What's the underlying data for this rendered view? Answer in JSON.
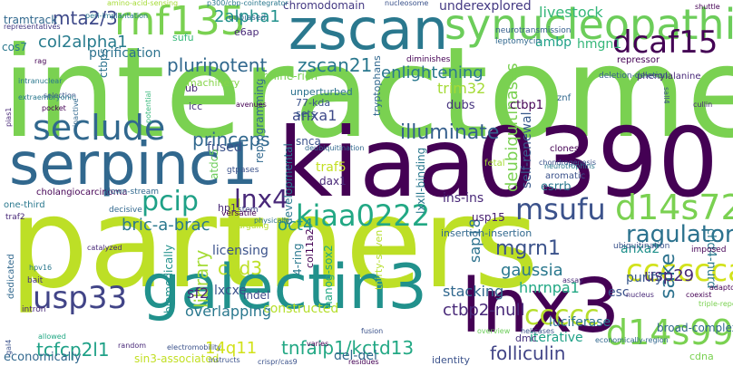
{
  "words": [
    {
      "text": "interactome",
      "color": "#7ad151"
    },
    {
      "text": "partners",
      "color": "#bddf26"
    },
    {
      "text": "kiaa0390",
      "color": "#440154"
    },
    {
      "text": "zscan",
      "color": "#2a788e"
    },
    {
      "text": "synucleopathies",
      "color": "#6ccd5a"
    },
    {
      "text": "galectin3",
      "color": "#21918c"
    },
    {
      "text": "serpinc1",
      "color": "#31688e"
    },
    {
      "text": "lnx3",
      "color": "#440154"
    },
    {
      "text": "rnf135",
      "color": "#7ad151"
    },
    {
      "text": "dcaf15",
      "color": "#440154"
    },
    {
      "text": "d14s72",
      "color": "#7ad151"
    },
    {
      "text": "d14s990",
      "color": "#7ad151"
    },
    {
      "text": "kiaa0222",
      "color": "#22a884"
    },
    {
      "text": "seclude",
      "color": "#31688e"
    },
    {
      "text": "msufu",
      "color": "#3b528b"
    },
    {
      "text": "pcip",
      "color": "#1fa187"
    },
    {
      "text": "lnx4",
      "color": "#482878"
    },
    {
      "text": "usp33",
      "color": "#414487"
    },
    {
      "text": "cccccca",
      "color": "#d2e21b"
    },
    {
      "text": "ccccc",
      "color": "#b5de2b"
    },
    {
      "text": "ragulator",
      "color": "#2c728e"
    },
    {
      "text": "illuminate",
      "color": "#355f8d"
    },
    {
      "text": "princeps",
      "color": "#31688e"
    },
    {
      "text": "zscan21",
      "color": "#2a788e"
    },
    {
      "text": "pluripotent",
      "color": "#31688e"
    },
    {
      "text": "col2alpha1",
      "color": "#287c8e"
    },
    {
      "text": "2alpha1",
      "color": "#21918c"
    },
    {
      "text": "mta2/3",
      "color": "#3e4989"
    },
    {
      "text": "enlightening",
      "color": "#2a788e"
    },
    {
      "text": "tcfcp2l1",
      "color": "#1fa187"
    },
    {
      "text": "tnfaip1/kctd13",
      "color": "#22a884"
    },
    {
      "text": "14q11",
      "color": "#d2e21b"
    },
    {
      "text": "folliculin",
      "color": "#414487"
    },
    {
      "text": "ctbp2-null",
      "color": "#482878"
    },
    {
      "text": "sake",
      "color": "#2c728e"
    },
    {
      "text": "oct4",
      "color": "#21918c"
    },
    {
      "text": "mgrn1",
      "color": "#3b528b"
    },
    {
      "text": "gaussia",
      "color": "#2a788e"
    },
    {
      "text": "chd3",
      "color": "#bddf26"
    },
    {
      "text": "bric-a-brac",
      "color": "#2a788e"
    },
    {
      "text": "library",
      "color": "#a5db36"
    },
    {
      "text": "anxa1",
      "color": "#3e4989"
    },
    {
      "text": "deubiquitinases",
      "color": "#7ad151"
    },
    {
      "text": "self-renewal",
      "color": "#38598c"
    },
    {
      "text": "livestock",
      "color": "#35b779"
    },
    {
      "text": "underexplored",
      "color": "#443983"
    },
    {
      "text": "trim32",
      "color": "#a5db36"
    },
    {
      "text": "ambp",
      "color": "#1fa187"
    },
    {
      "text": "hmgn1",
      "color": "#35b779"
    },
    {
      "text": "traf5",
      "color": "#c2df23"
    },
    {
      "text": "stacking",
      "color": "#31688e"
    },
    {
      "text": "usp29",
      "color": "#482878"
    },
    {
      "text": "hnrnpa1",
      "color": "#22a884"
    },
    {
      "text": "sap18",
      "color": "#2c728e"
    },
    {
      "text": "overlapping",
      "color": "#2a788e"
    },
    {
      "text": "luciferase",
      "color": "#2c728e"
    },
    {
      "text": "iterative",
      "color": "#1fa187"
    },
    {
      "text": "del-del",
      "color": "#31688e"
    },
    {
      "text": "economically",
      "color": "#31688e"
    },
    {
      "text": "chromodomain",
      "color": "#443983"
    },
    {
      "text": "purification",
      "color": "#2c728e"
    },
    {
      "text": "fused",
      "color": "#3b528b"
    },
    {
      "text": "developmental",
      "color": "#2a788e"
    },
    {
      "text": "reprogramming",
      "color": "#31688e"
    },
    {
      "text": "anxa2",
      "color": "#21918c"
    },
    {
      "text": "ins-ins",
      "color": "#482878"
    },
    {
      "text": "esc",
      "color": "#3b528b"
    },
    {
      "text": "purify",
      "color": "#38598c"
    },
    {
      "text": "licensing",
      "color": "#3b528b"
    },
    {
      "text": "sf2",
      "color": "#482878"
    },
    {
      "text": "lxcxe",
      "color": "#3b528b"
    },
    {
      "text": "constructed",
      "color": "#b5de2b"
    },
    {
      "text": "chd4-nurd",
      "color": "#2a788e"
    },
    {
      "text": "ctbp1",
      "color": "#440154"
    },
    {
      "text": "dubs",
      "color": "#46337e"
    },
    {
      "text": "esrrb",
      "color": "#2a788e"
    },
    {
      "text": "sin3-associated",
      "color": "#c2df23"
    },
    {
      "text": "nanog-sox2",
      "color": "#22a884"
    },
    {
      "text": "4-ring",
      "color": "#2a788e"
    },
    {
      "text": "col11a2",
      "color": "#440154"
    },
    {
      "text": "atdc5",
      "color": "#6ccd5a"
    },
    {
      "text": "dax1",
      "color": "#482878"
    },
    {
      "text": "usp15",
      "color": "#481f70"
    },
    {
      "text": "lxxll-binding",
      "color": "#2a788e"
    },
    {
      "text": "ctbps",
      "color": "#2c728e"
    },
    {
      "text": "cos7",
      "color": "#2a788e"
    },
    {
      "text": "tramtrack",
      "color": "#31688e"
    },
    {
      "text": "e6ap",
      "color": "#482878"
    },
    {
      "text": "proline-rich",
      "color": "#7ad151"
    },
    {
      "text": "machinery",
      "color": "#86d549"
    },
    {
      "text": "unperturbed",
      "color": "#2c728e"
    },
    {
      "text": "77-kda",
      "color": "#3b528b"
    },
    {
      "text": "tryptophans",
      "color": "#31688e"
    },
    {
      "text": "snca",
      "color": "#3b528b"
    },
    {
      "text": "hp1",
      "color": "#482878"
    },
    {
      "text": "indel",
      "color": "#3e4989"
    },
    {
      "text": "biomedically",
      "color": "#21918c"
    },
    {
      "text": "icc",
      "color": "#46337e"
    },
    {
      "text": "ub",
      "color": "#482878"
    },
    {
      "text": "sets",
      "color": "#38598c"
    },
    {
      "text": "thirty-seven",
      "color": "#b5de2b"
    },
    {
      "text": "insertion-insertion",
      "color": "#31688e"
    },
    {
      "text": "dmc",
      "color": "#46337e"
    },
    {
      "text": "cdna",
      "color": "#7ad151"
    },
    {
      "text": "identity",
      "color": "#3b528b"
    },
    {
      "text": "broad-complex",
      "color": "#31688e"
    },
    {
      "text": "sufu",
      "color": "#35b779"
    },
    {
      "text": "znf",
      "color": "#31688e"
    },
    {
      "text": "fetal",
      "color": "#a5db36"
    },
    {
      "text": "clones",
      "color": "#440154"
    },
    {
      "text": "aromatic",
      "color": "#3b528b"
    },
    {
      "text": "repressor",
      "color": "#440154"
    },
    {
      "text": "phenylalanine",
      "color": "#482878"
    },
    {
      "text": "deletion-deletion",
      "color": "#355f8d"
    },
    {
      "text": "diminishes",
      "color": "#440154"
    },
    {
      "text": "neurotransmission",
      "color": "#355f8d"
    },
    {
      "text": "leptomycin",
      "color": "#31688e"
    },
    {
      "text": "unbiased",
      "color": "#31688e"
    },
    {
      "text": "nucleosome",
      "color": "#3b528b"
    },
    {
      "text": "p300/cbp-cointegrator",
      "color": "#2a788e"
    },
    {
      "text": "amino-acid-sensing",
      "color": "#a5db36"
    },
    {
      "text": "representatives",
      "color": "#443983"
    },
    {
      "text": "deubiquitination",
      "color": "#31688e"
    },
    {
      "text": "cholangiocarcinoma",
      "color": "#440154"
    },
    {
      "text": "down-stream",
      "color": "#31688e"
    },
    {
      "text": "gtpases",
      "color": "#3b528b"
    },
    {
      "text": "one-third",
      "color": "#2a788e"
    },
    {
      "text": "decisive",
      "color": "#31688e"
    },
    {
      "text": "stem",
      "color": "#3e4989"
    },
    {
      "text": "versatile",
      "color": "#440154"
    },
    {
      "text": "physically",
      "color": "#2c728e"
    },
    {
      "text": "arguing",
      "color": "#b5de2b"
    },
    {
      "text": "traf2",
      "color": "#482878"
    },
    {
      "text": "catalyzed",
      "color": "#482878"
    },
    {
      "text": "hpv16",
      "color": "#2a788e"
    },
    {
      "text": "bait",
      "color": "#46337e"
    },
    {
      "text": "intron",
      "color": "#482878"
    },
    {
      "text": "helicases",
      "color": "#3b528b"
    },
    {
      "text": "economically-region",
      "color": "#31688e"
    },
    {
      "text": "nucleus",
      "color": "#482878"
    },
    {
      "text": "assay",
      "color": "#482878"
    },
    {
      "text": "ubiquitination",
      "color": "#3b528b"
    },
    {
      "text": "imposed",
      "color": "#440154"
    },
    {
      "text": "triple-repeat",
      "color": "#7ad151"
    },
    {
      "text": "adaptors",
      "color": "#440154"
    },
    {
      "text": "coexist",
      "color": "#440154"
    },
    {
      "text": "cullin",
      "color": "#482878"
    },
    {
      "text": "sall4",
      "color": "#3b528b"
    },
    {
      "text": "shuttle",
      "color": "#440154"
    },
    {
      "text": "peri-implantation",
      "color": "#2a788e"
    },
    {
      "text": "overview",
      "color": "#6ccd5a"
    },
    {
      "text": "gal4",
      "color": "#3b528b"
    },
    {
      "text": "dedicated",
      "color": "#31688e"
    },
    {
      "text": "chondrogenesis",
      "color": "#3b528b"
    },
    {
      "text": "neurotrophins",
      "color": "#2a788e"
    },
    {
      "text": "residues",
      "color": "#440154"
    },
    {
      "text": "crispr/cas9",
      "color": "#3b528b"
    },
    {
      "text": "instructs",
      "color": "#3b528b"
    },
    {
      "text": "electromobility",
      "color": "#3b528b"
    },
    {
      "text": "random",
      "color": "#482878"
    },
    {
      "text": "varies",
      "color": "#440154"
    },
    {
      "text": "fusion",
      "color": "#3b528b"
    },
    {
      "text": "avenues",
      "color": "#440154"
    },
    {
      "text": "potential",
      "color": "#35b779"
    },
    {
      "text": "inactive",
      "color": "#31688e"
    },
    {
      "text": "pias1",
      "color": "#482878"
    },
    {
      "text": "selection",
      "color": "#3b528b"
    },
    {
      "text": "extraembryonic",
      "color": "#2a788e"
    },
    {
      "text": "intranuclear",
      "color": "#2a788e"
    },
    {
      "text": "allowed",
      "color": "#22a884"
    },
    {
      "text": "pocket",
      "color": "#440154"
    },
    {
      "text": "rag",
      "color": "#440154"
    },
    {
      "text": "sucrose",
      "color": "#3b528b"
    },
    {
      "text": "ctbp",
      "color": "#86d549"
    },
    {
      "text": "chondrocytes",
      "color": "#31688e"
    }
  ]
}
